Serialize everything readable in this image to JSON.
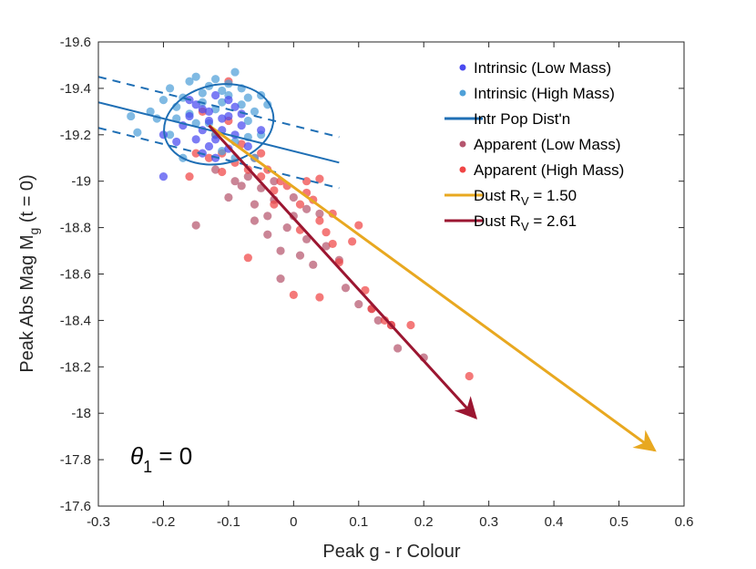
{
  "chart_data": {
    "type": "scatter",
    "xlabel": "Peak g - r Colour",
    "ylabel": "Peak Abs Mag M",
    "ylabel_sub": "g",
    "ylabel_tail": " (t = 0)",
    "xlim": [
      -0.3,
      0.6
    ],
    "ylim": [
      -17.6,
      -19.6
    ],
    "xticks": [
      -0.3,
      -0.2,
      -0.1,
      0,
      0.1,
      0.2,
      0.3,
      0.4,
      0.5,
      0.6
    ],
    "xtick_labels": [
      "-0.3",
      "-0.2",
      "-0.1",
      "0",
      "0.1",
      "0.2",
      "0.3",
      "0.4",
      "0.5",
      "0.6"
    ],
    "yticks": [
      -19.6,
      -19.4,
      -19.2,
      -19,
      -18.8,
      -18.6,
      -18.4,
      -18.2,
      -18,
      -17.8,
      -17.6
    ],
    "ytick_labels": [
      "-19.6",
      "-19.4",
      "-19.2",
      "-19",
      "-18.8",
      "-18.6",
      "-18.4",
      "-18.2",
      "-18",
      "-17.8",
      "-17.6"
    ],
    "annotation": {
      "symbol": "θ",
      "sub": "1",
      "text": " = 0"
    },
    "legend_position": "top-right",
    "colors": {
      "intrinsic_low": "#4a4af0",
      "intrinsic_high": "#4fa0d8",
      "popdist": "#1f6fb5",
      "apparent_low": "#b5566e",
      "apparent_high": "#f04545",
      "dust_150": "#e8a820",
      "dust_261": "#9b1631"
    },
    "legend": [
      {
        "kind": "dot",
        "color_key": "intrinsic_low",
        "label": "Intrinsic (Low Mass)"
      },
      {
        "kind": "dot",
        "color_key": "intrinsic_high",
        "label": "Intrinsic (High Mass)"
      },
      {
        "kind": "line",
        "color_key": "popdist",
        "label": "Intr Pop Dist'n"
      },
      {
        "kind": "dot",
        "color_key": "apparent_low",
        "label": "Apparent (Low Mass)"
      },
      {
        "kind": "dot",
        "color_key": "apparent_high",
        "label": "Apparent (High Mass)"
      },
      {
        "kind": "line",
        "color_key": "dust_150",
        "label": "Dust R",
        "sub": "V",
        "tail": " = 1.50"
      },
      {
        "kind": "line",
        "color_key": "dust_261",
        "label": "Dust R",
        "sub": "V",
        "tail": " = 2.61"
      }
    ],
    "pop_dist": {
      "center": {
        "x": -0.11,
        "y": -19.24
      },
      "line": [
        {
          "x": -0.3,
          "y": -19.34
        },
        {
          "x": 0.07,
          "y": -19.08
        }
      ],
      "upper_dashed": [
        {
          "x": -0.3,
          "y": -19.45
        },
        {
          "x": 0.07,
          "y": -19.19
        }
      ],
      "lower_dashed": [
        {
          "x": -0.3,
          "y": -19.23
        },
        {
          "x": 0.07,
          "y": -18.97
        }
      ],
      "ellipse": {
        "cx": -0.115,
        "cy": -19.245,
        "rx_data": 0.085,
        "ry_data": 0.17,
        "angle_deg": -12
      }
    },
    "dust_vectors": [
      {
        "name": "Dust RV = 1.50",
        "color_key": "dust_150",
        "start": {
          "x": -0.13,
          "y": -19.24
        },
        "end": {
          "x": 0.555,
          "y": -17.84
        }
      },
      {
        "name": "Dust RV = 2.61",
        "color_key": "dust_261",
        "start": {
          "x": -0.13,
          "y": -19.24
        },
        "end": {
          "x": 0.28,
          "y": -17.98
        }
      }
    ],
    "series": [
      {
        "name": "Intrinsic (Low Mass)",
        "color_key": "intrinsic_low",
        "points": [
          [
            -0.2,
            -19.2
          ],
          [
            -0.18,
            -19.17
          ],
          [
            -0.16,
            -19.28
          ],
          [
            -0.15,
            -19.33
          ],
          [
            -0.14,
            -19.22
          ],
          [
            -0.13,
            -19.3
          ],
          [
            -0.12,
            -19.18
          ],
          [
            -0.11,
            -19.27
          ],
          [
            -0.1,
            -19.35
          ],
          [
            -0.09,
            -19.2
          ],
          [
            -0.08,
            -19.29
          ],
          [
            -0.07,
            -19.15
          ],
          [
            -0.12,
            -19.37
          ],
          [
            -0.14,
            -19.12
          ],
          [
            -0.1,
            -19.14
          ],
          [
            -0.17,
            -19.24
          ],
          [
            -0.09,
            -19.32
          ],
          [
            -0.11,
            -19.22
          ],
          [
            -0.13,
            -19.26
          ],
          [
            -0.15,
            -19.18
          ],
          [
            -0.08,
            -19.24
          ],
          [
            -0.2,
            -19.02
          ],
          [
            -0.05,
            -19.22
          ],
          [
            -0.16,
            -19.35
          ],
          [
            -0.12,
            -19.1
          ],
          [
            -0.14,
            -19.31
          ],
          [
            -0.1,
            -19.28
          ],
          [
            -0.13,
            -19.15
          ]
        ]
      },
      {
        "name": "Intrinsic (High Mass)",
        "color_key": "intrinsic_high",
        "points": [
          [
            -0.25,
            -19.28
          ],
          [
            -0.24,
            -19.21
          ],
          [
            -0.22,
            -19.3
          ],
          [
            -0.2,
            -19.35
          ],
          [
            -0.19,
            -19.4
          ],
          [
            -0.18,
            -19.27
          ],
          [
            -0.17,
            -19.36
          ],
          [
            -0.16,
            -19.43
          ],
          [
            -0.15,
            -19.45
          ],
          [
            -0.14,
            -19.38
          ],
          [
            -0.13,
            -19.25
          ],
          [
            -0.12,
            -19.31
          ],
          [
            -0.11,
            -19.39
          ],
          [
            -0.1,
            -19.42
          ],
          [
            -0.09,
            -19.47
          ],
          [
            -0.08,
            -19.33
          ],
          [
            -0.07,
            -19.36
          ],
          [
            -0.06,
            -19.3
          ],
          [
            -0.05,
            -19.37
          ],
          [
            -0.04,
            -19.33
          ],
          [
            -0.11,
            -19.13
          ],
          [
            -0.09,
            -19.1
          ],
          [
            -0.07,
            -19.19
          ],
          [
            -0.06,
            -19.1
          ],
          [
            -0.15,
            -19.25
          ],
          [
            -0.14,
            -19.34
          ],
          [
            -0.12,
            -19.44
          ],
          [
            -0.1,
            -19.37
          ],
          [
            -0.16,
            -19.29
          ],
          [
            -0.08,
            -19.4
          ],
          [
            -0.19,
            -19.2
          ],
          [
            -0.13,
            -19.41
          ],
          [
            -0.05,
            -19.2
          ],
          [
            -0.17,
            -19.1
          ],
          [
            -0.12,
            -19.2
          ],
          [
            -0.18,
            -19.32
          ],
          [
            -0.11,
            -19.34
          ],
          [
            -0.07,
            -19.26
          ],
          [
            -0.09,
            -19.17
          ],
          [
            -0.21,
            -19.27
          ]
        ]
      },
      {
        "name": "Apparent (Low Mass)",
        "color_key": "apparent_low",
        "points": [
          [
            -0.15,
            -18.81
          ],
          [
            -0.1,
            -18.93
          ],
          [
            -0.08,
            -18.98
          ],
          [
            -0.06,
            -18.9
          ],
          [
            -0.05,
            -18.97
          ],
          [
            -0.04,
            -18.85
          ],
          [
            -0.03,
            -18.92
          ],
          [
            -0.02,
            -18.7
          ],
          [
            -0.01,
            -18.8
          ],
          [
            0.0,
            -18.85
          ],
          [
            0.01,
            -18.68
          ],
          [
            0.02,
            -18.75
          ],
          [
            0.03,
            -18.64
          ],
          [
            -0.02,
            -18.58
          ],
          [
            -0.04,
            -18.77
          ],
          [
            0.05,
            -18.72
          ],
          [
            0.07,
            -18.66
          ],
          [
            0.04,
            -18.86
          ],
          [
            0.08,
            -18.54
          ],
          [
            0.1,
            -18.47
          ],
          [
            0.12,
            -18.45
          ],
          [
            0.13,
            -18.4
          ],
          [
            0.15,
            -18.38
          ],
          [
            0.16,
            -18.28
          ],
          [
            0.2,
            -18.24
          ],
          [
            -0.09,
            -19.0
          ],
          [
            -0.07,
            -19.02
          ],
          [
            -0.12,
            -19.05
          ],
          [
            0.0,
            -18.93
          ],
          [
            -0.03,
            -19.0
          ],
          [
            0.02,
            -18.88
          ],
          [
            -0.06,
            -18.83
          ]
        ]
      },
      {
        "name": "Apparent (High Mass)",
        "color_key": "apparent_high",
        "points": [
          [
            -0.13,
            -19.1
          ],
          [
            -0.11,
            -19.12
          ],
          [
            -0.09,
            -19.08
          ],
          [
            -0.07,
            -19.05
          ],
          [
            -0.05,
            -19.02
          ],
          [
            -0.04,
            -19.05
          ],
          [
            -0.03,
            -18.96
          ],
          [
            -0.02,
            -19.0
          ],
          [
            -0.01,
            -18.98
          ],
          [
            0.01,
            -18.9
          ],
          [
            0.02,
            -18.95
          ],
          [
            0.03,
            -18.92
          ],
          [
            0.04,
            -18.83
          ],
          [
            0.05,
            -18.78
          ],
          [
            0.06,
            -18.73
          ],
          [
            0.07,
            -18.65
          ],
          [
            0.09,
            -18.74
          ],
          [
            0.1,
            -18.81
          ],
          [
            0.11,
            -18.53
          ],
          [
            0.12,
            -18.45
          ],
          [
            0.14,
            -18.4
          ],
          [
            0.15,
            -18.38
          ],
          [
            0.18,
            -18.38
          ],
          [
            0.27,
            -18.16
          ],
          [
            -0.07,
            -18.67
          ],
          [
            0.0,
            -18.51
          ],
          [
            0.04,
            -18.5
          ],
          [
            -0.16,
            -19.02
          ],
          [
            -0.15,
            -19.12
          ],
          [
            0.02,
            -19.0
          ],
          [
            -0.1,
            -19.43
          ],
          [
            -0.12,
            -19.2
          ],
          [
            -0.08,
            -19.16
          ],
          [
            -0.05,
            -19.12
          ],
          [
            -0.1,
            -19.26
          ],
          [
            -0.14,
            -19.3
          ],
          [
            -0.06,
            -19.1
          ],
          [
            0.04,
            -19.01
          ],
          [
            -0.11,
            -19.04
          ],
          [
            -0.03,
            -18.9
          ],
          [
            0.06,
            -18.86
          ],
          [
            0.01,
            -18.79
          ]
        ]
      }
    ]
  }
}
